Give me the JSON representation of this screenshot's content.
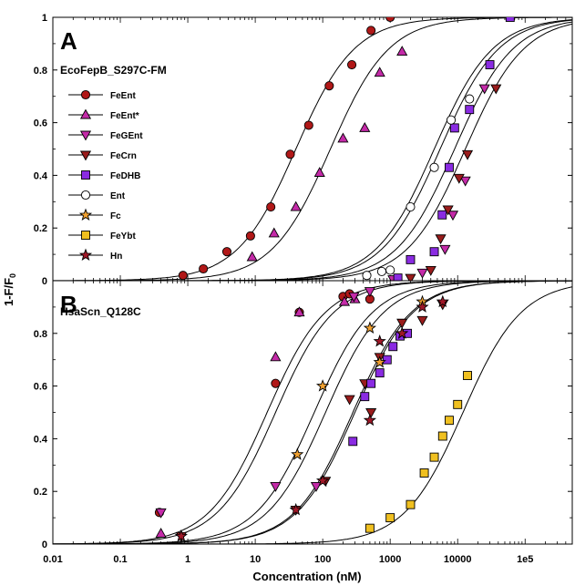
{
  "chart_data": {
    "type": "scatter",
    "xscale": "log",
    "xlim": [
      0.01,
      500000
    ],
    "xlabel": "Concentration (nM)",
    "ylabel": "1-F/F",
    "ylabel_sub": "0",
    "xticks": [
      {
        "v": 0.01,
        "label": "0.01"
      },
      {
        "v": 0.1,
        "label": "0.1"
      },
      {
        "v": 1,
        "label": "1"
      },
      {
        "v": 10,
        "label": "10"
      },
      {
        "v": 100,
        "label": "100"
      },
      {
        "v": 1000,
        "label": "1000"
      },
      {
        "v": 10000,
        "label": "10000"
      },
      {
        "v": 100000,
        "label": "1e5"
      }
    ],
    "legend": [
      {
        "name": "FeEnt",
        "marker": "circle",
        "color": "#b01818"
      },
      {
        "name": "FeEnt*",
        "marker": "triangle-up",
        "color": "#c42aa8"
      },
      {
        "name": "FeGEnt",
        "marker": "triangle-down",
        "color": "#c42aa8"
      },
      {
        "name": "FeCrn",
        "marker": "triangle-down",
        "color": "#9a1c1c"
      },
      {
        "name": "FeDHB",
        "marker": "square",
        "color": "#8a2be2"
      },
      {
        "name": "Ent",
        "marker": "circle",
        "color": "#ffffff"
      },
      {
        "name": "Fc",
        "marker": "star",
        "color": "#f0a030"
      },
      {
        "name": "FeYbt",
        "marker": "square",
        "color": "#f0c020"
      },
      {
        "name": "Hn",
        "marker": "star",
        "color": "#a01828"
      }
    ],
    "panels": [
      {
        "letter": "A",
        "title": "EcoFepB_S297C-FM",
        "ylim": [
          0,
          1
        ],
        "yticks": [
          {
            "v": 0,
            "label": "0"
          },
          {
            "v": 0.2,
            "label": "0.2"
          },
          {
            "v": 0.4,
            "label": "0.4"
          },
          {
            "v": 0.6,
            "label": "0.6"
          },
          {
            "v": 0.8,
            "label": "0.8"
          },
          {
            "v": 1,
            "label": "1"
          }
        ],
        "curves_kd": [
          40,
          130,
          4500,
          5500,
          9000,
          13000
        ],
        "series": [
          {
            "name": "FeEnt",
            "points": [
              [
                0.85,
                0.02
              ],
              [
                1.7,
                0.045
              ],
              [
                3.8,
                0.11
              ],
              [
                8.5,
                0.17
              ],
              [
                17,
                0.28
              ],
              [
                33,
                0.48
              ],
              [
                62,
                0.59
              ],
              [
                125,
                0.74
              ],
              [
                270,
                0.82
              ],
              [
                520,
                0.95
              ],
              [
                1000,
                1.0
              ]
            ]
          },
          {
            "name": "FeEnt*",
            "points": [
              [
                9,
                0.09
              ],
              [
                19,
                0.18
              ],
              [
                40,
                0.28
              ],
              [
                90,
                0.41
              ],
              [
                200,
                0.54
              ],
              [
                420,
                0.58
              ],
              [
                700,
                0.79
              ],
              [
                1500,
                0.87
              ]
            ]
          },
          {
            "name": "FeGEnt",
            "points": [
              [
                1100,
                0.005
              ],
              [
                3000,
                0.03
              ],
              [
                6500,
                0.12
              ],
              [
                8500,
                0.25
              ],
              [
                13000,
                0.38
              ],
              [
                25000,
                0.73
              ]
            ]
          },
          {
            "name": "FeCrn",
            "points": [
              [
                2000,
                0.01
              ],
              [
                4000,
                0.04
              ],
              [
                5600,
                0.16
              ],
              [
                7200,
                0.27
              ],
              [
                10500,
                0.39
              ],
              [
                14000,
                0.48
              ],
              [
                37000,
                0.73
              ]
            ]
          },
          {
            "name": "FeDHB",
            "points": [
              [
                1300,
                0.01
              ],
              [
                2000,
                0.08
              ],
              [
                4500,
                0.11
              ],
              [
                5900,
                0.25
              ],
              [
                7500,
                0.43
              ],
              [
                9000,
                0.58
              ],
              [
                15000,
                0.65
              ],
              [
                30000,
                0.82
              ],
              [
                60000,
                1.0
              ]
            ]
          },
          {
            "name": "Ent",
            "points": [
              [
                450,
                0.02
              ],
              [
                750,
                0.035
              ],
              [
                1000,
                0.04
              ],
              [
                2000,
                0.28
              ],
              [
                4500,
                0.43
              ],
              [
                8000,
                0.61
              ],
              [
                15000,
                0.69
              ]
            ]
          }
        ]
      },
      {
        "letter": "B",
        "title": "HsaScn_Q128C",
        "ylim": [
          0,
          1
        ],
        "yticks": [
          {
            "v": 0,
            "label": "0"
          },
          {
            "v": 0.2,
            "label": "0.2"
          },
          {
            "v": 0.4,
            "label": "0.4"
          },
          {
            "v": 0.6,
            "label": "0.6"
          },
          {
            "v": 0.8,
            "label": "0.8"
          }
        ],
        "curves_kd": [
          15,
          20,
          75,
          110,
          280,
          300,
          12000
        ],
        "series": [
          {
            "name": "FeEnt",
            "points": [
              [
                0.38,
                0.12
              ],
              [
                20,
                0.61
              ],
              [
                45,
                0.88
              ],
              [
                200,
                0.94
              ],
              [
                250,
                0.95
              ],
              [
                500,
                0.93
              ]
            ]
          },
          {
            "name": "FeEnt*",
            "points": [
              [
                0.4,
                0.04
              ],
              [
                20,
                0.71
              ],
              [
                45,
                0.88
              ],
              [
                210,
                0.92
              ],
              [
                300,
                0.93
              ]
            ]
          },
          {
            "name": "FeGEnt",
            "points": [
              [
                0.4,
                0.12
              ],
              [
                20,
                0.22
              ],
              [
                80,
                0.22
              ],
              [
                290,
                0.94
              ],
              [
                500,
                0.96
              ]
            ]
          },
          {
            "name": "FeCrn",
            "points": [
              [
                0.8,
                0.03
              ],
              [
                40,
                0.13
              ],
              [
                110,
                0.24
              ],
              [
                250,
                0.55
              ],
              [
                420,
                0.61
              ],
              [
                520,
                0.5
              ],
              [
                700,
                0.71
              ],
              [
                1500,
                0.84
              ],
              [
                3000,
                0.85
              ],
              [
                6000,
                0.91
              ]
            ]
          },
          {
            "name": "FeDHB",
            "points": [
              [
                280,
                0.39
              ],
              [
                420,
                0.56
              ],
              [
                520,
                0.61
              ],
              [
                700,
                0.65
              ],
              [
                900,
                0.7
              ],
              [
                1100,
                0.75
              ],
              [
                1400,
                0.79
              ],
              [
                1800,
                0.8
              ]
            ]
          },
          {
            "name": "Fc",
            "points": [
              [
                42,
                0.34
              ],
              [
                100,
                0.6
              ],
              [
                500,
                0.82
              ],
              [
                700,
                0.69
              ],
              [
                3000,
                0.92
              ]
            ]
          },
          {
            "name": "FeYbt",
            "points": [
              [
                500,
                0.06
              ],
              [
                1000,
                0.1
              ],
              [
                2000,
                0.15
              ],
              [
                3200,
                0.27
              ],
              [
                4500,
                0.33
              ],
              [
                6000,
                0.41
              ],
              [
                7500,
                0.47
              ],
              [
                10000,
                0.53
              ],
              [
                14000,
                0.64
              ]
            ]
          },
          {
            "name": "Hn",
            "points": [
              [
                0.8,
                0.03
              ],
              [
                40,
                0.13
              ],
              [
                100,
                0.24
              ],
              [
                500,
                0.47
              ],
              [
                700,
                0.77
              ],
              [
                1500,
                0.8
              ],
              [
                3000,
                0.9
              ],
              [
                6000,
                0.92
              ]
            ]
          }
        ]
      }
    ]
  }
}
